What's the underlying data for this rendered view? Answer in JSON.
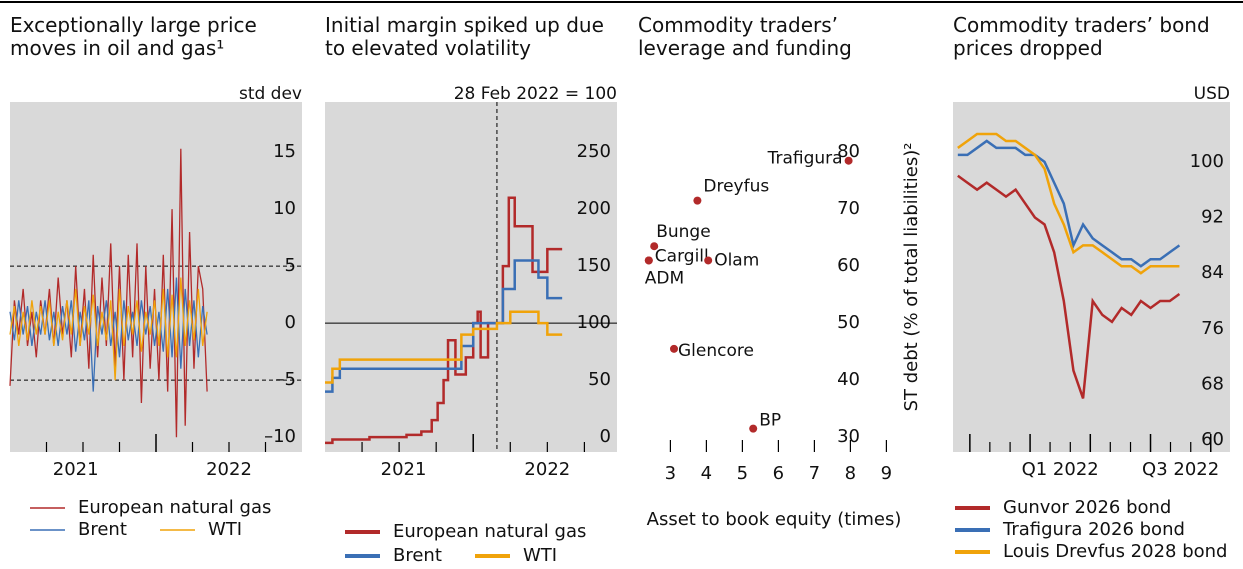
{
  "chart_data": [
    {
      "type": "line",
      "title": "Exceptionally large price moves in oil and gas¹",
      "unit": "std dev",
      "x": [
        2021,
        2021.03,
        2021.06,
        2021.09,
        2021.12,
        2021.15,
        2021.18,
        2021.21,
        2021.24,
        2021.27,
        2021.3,
        2021.33,
        2021.36,
        2021.39,
        2021.42,
        2021.45,
        2021.48,
        2021.51,
        2021.54,
        2021.57,
        2021.6,
        2021.63,
        2021.66,
        2021.69,
        2021.72,
        2021.75,
        2021.78,
        2021.81,
        2021.84,
        2021.87,
        2021.9,
        2021.93,
        2021.96,
        2021.99,
        2022.02,
        2022.05,
        2022.08,
        2022.11,
        2022.14,
        2022.17,
        2022.2,
        2022.23,
        2022.26,
        2022.29,
        2022.32,
        2022.35
      ],
      "series": [
        {
          "name": "European natural gas",
          "color": "#b22a2a",
          "values": [
            -5.5,
            2,
            -1,
            3,
            -2,
            1,
            -3,
            2,
            -1,
            3,
            -2,
            4,
            -1,
            2,
            -3,
            5,
            -2,
            3,
            -4,
            6,
            -3,
            4,
            -2,
            7,
            -4,
            5,
            -5,
            6,
            -3,
            7,
            -7,
            5,
            -4,
            3,
            -5,
            6,
            -6,
            10,
            -10,
            15.3,
            -9,
            8,
            -4,
            5,
            3,
            -6
          ]
        },
        {
          "name": "Brent",
          "color": "#3a6fb5",
          "values": [
            1,
            -1.5,
            2,
            -1,
            1.5,
            -2,
            1,
            -1,
            2,
            -1.5,
            1,
            -2,
            1.5,
            -1,
            2,
            -2.5,
            1,
            -1.5,
            2,
            -6,
            1.5,
            -1,
            2,
            -2,
            1,
            -3,
            2,
            -1.5,
            1,
            -2,
            2,
            -1,
            1.5,
            -2,
            1,
            -2.5,
            3,
            -3,
            4,
            -4,
            3,
            -2,
            2,
            -3,
            1.5,
            -1
          ]
        },
        {
          "name": "WTI",
          "color": "#f0a30a",
          "values": [
            -1,
            1.5,
            -2,
            1,
            -1.5,
            2,
            -1,
            1.5,
            -1,
            2,
            -2,
            1,
            -1.5,
            2,
            -1,
            3,
            -2,
            1.5,
            -1,
            2.5,
            -2,
            1,
            -1.5,
            2,
            -5,
            3,
            -2,
            1.5,
            -1,
            2,
            -2.5,
            1,
            -1,
            2,
            -2,
            3,
            -3,
            2.5,
            -3,
            4,
            -2,
            2,
            -1.5,
            3,
            -2,
            1
          ]
        }
      ],
      "xlim": [
        2021,
        2023
      ],
      "xticks": [
        {
          "value": 2021.45,
          "label": "2021"
        },
        {
          "value": 2022.5,
          "label": "2022"
        }
      ],
      "xminorticks": [
        2021.25,
        2021.5,
        2021.75,
        2022.25,
        2022.5,
        2022.75
      ],
      "xmajorticks": [
        2022
      ],
      "ylim": [
        -11.3,
        19.4
      ],
      "yticks": [
        {
          "value": -10,
          "label": "–10"
        },
        {
          "value": -5,
          "label": "–5"
        },
        0,
        5,
        10,
        15
      ],
      "ref_lines": [
        5,
        -5
      ]
    },
    {
      "type": "step",
      "title": "Initial margin spiked up due to elevated volatility",
      "unit": "28 Feb 2022 = 100",
      "series": [
        {
          "name": "European natural gas",
          "color": "#b22a2a",
          "x": [
            2021.0,
            2021.05,
            2021.3,
            2021.55,
            2021.65,
            2021.72,
            2021.76,
            2021.8,
            2021.83,
            2021.88,
            2021.95,
            2022.0,
            2022.03,
            2022.05,
            2022.1,
            2022.2,
            2022.24,
            2022.28,
            2022.4,
            2022.5,
            2022.6
          ],
          "values": [
            -5,
            -2,
            0,
            2,
            5,
            15,
            30,
            50,
            85,
            55,
            70,
            100,
            110,
            70,
            100,
            150,
            210,
            185,
            145,
            165,
            165
          ]
        },
        {
          "name": "Brent",
          "color": "#3a6fb5",
          "x": [
            2021.0,
            2021.05,
            2021.1,
            2021.92,
            2022.0,
            2022.1,
            2022.2,
            2022.28,
            2022.44,
            2022.5,
            2022.6
          ],
          "values": [
            40,
            52,
            60,
            80,
            100,
            100,
            130,
            155,
            140,
            122,
            122
          ]
        },
        {
          "name": "WTI",
          "color": "#f0a30a",
          "x": [
            2021.0,
            2021.05,
            2021.1,
            2021.6,
            2021.92,
            2022.0,
            2022.16,
            2022.25,
            2022.44,
            2022.5,
            2022.6
          ],
          "values": [
            48,
            60,
            68,
            68,
            90,
            95,
            100,
            110,
            100,
            90,
            90
          ]
        }
      ],
      "xlim": [
        2021,
        2022.97
      ],
      "xticks": [
        {
          "value": 2021.53,
          "label": "2021"
        },
        {
          "value": 2022.5,
          "label": "2022"
        }
      ],
      "xminorticks": [
        2021.25,
        2021.5,
        2021.75,
        2022.25,
        2022.5,
        2022.75
      ],
      "xmajorticks": [
        2022
      ],
      "ylim": [
        -13,
        294
      ],
      "yticks": [
        0,
        50,
        100,
        150,
        200,
        250
      ],
      "ref_lines": [
        100
      ],
      "event_x": 2022.16
    },
    {
      "type": "scatter",
      "title": "Commodity traders’ leverage and funding",
      "labels": [
        "Trafigura",
        "Dreyfus",
        "Bunge",
        "Cargill",
        "ADM",
        "Olam",
        "Glencore",
        "BP"
      ],
      "x": [
        7.95,
        3.75,
        2.55,
        2.4,
        2.4,
        4.05,
        3.1,
        5.3
      ],
      "values": [
        78.5,
        71.5,
        63.5,
        61,
        61,
        61,
        45.5,
        31.5
      ],
      "color": "#b22a2a",
      "xlabel": "Asset to book equity (times)",
      "ylabel": "ST debt (% of total liabilities)²",
      "xlim": [
        2.1,
        9.1
      ],
      "xticks": [
        3,
        4,
        5,
        6,
        7,
        8,
        9
      ],
      "ylim": [
        27.4,
        88.8
      ],
      "yticks": [
        30,
        40,
        50,
        60,
        70,
        80
      ]
    },
    {
      "type": "line",
      "title": "Commodity traders’ bond prices dropped",
      "unit": "USD",
      "x": [
        2021.7,
        2021.74,
        2021.78,
        2021.82,
        2021.86,
        2021.9,
        2021.94,
        2021.98,
        2022.02,
        2022.06,
        2022.1,
        2022.14,
        2022.18,
        2022.22,
        2022.26,
        2022.3,
        2022.34,
        2022.38,
        2022.42,
        2022.46,
        2022.5,
        2022.54,
        2022.58,
        2022.62
      ],
      "series": [
        {
          "name": "Gunvor 2026 bond",
          "color": "#b22a2a",
          "values": [
            98,
            97,
            96,
            97,
            96,
            95,
            96,
            94,
            92,
            91,
            87,
            80,
            70,
            66,
            80,
            78,
            77,
            79,
            78,
            80,
            79,
            80,
            80,
            81
          ]
        },
        {
          "name": "Trafigura 2026 bond",
          "color": "#3a6fb5",
          "values": [
            101,
            101,
            102,
            103,
            102,
            102,
            102,
            101,
            101,
            100,
            97,
            94,
            88,
            91,
            89,
            88,
            87,
            86,
            86,
            85,
            86,
            86,
            87,
            88
          ]
        },
        {
          "name": "Louis Drevfus 2028 bond",
          "color": "#f0a30a",
          "values": [
            102,
            103,
            104,
            104,
            104,
            103,
            103,
            102,
            101,
            99,
            94,
            91,
            87,
            88,
            88,
            87,
            86,
            85,
            85,
            84,
            85,
            85,
            85,
            85
          ]
        }
      ],
      "xlim": [
        2021.68,
        2022.83
      ],
      "xticks": [
        {
          "value": 2022.125,
          "label": "Q1 2022"
        },
        {
          "value": 2022.625,
          "label": "Q3 2022"
        }
      ],
      "xminorticks": [
        2021.833,
        2021.917,
        2022.083,
        2022.167,
        2022.333,
        2022.417,
        2022.583,
        2022.667
      ],
      "xmajorticks": [
        2021.75,
        2022,
        2022.25,
        2022.5,
        2022.75
      ],
      "ylim": [
        58.3,
        108.6
      ],
      "yticks": [
        60,
        68,
        76,
        84,
        92,
        100
      ]
    }
  ]
}
